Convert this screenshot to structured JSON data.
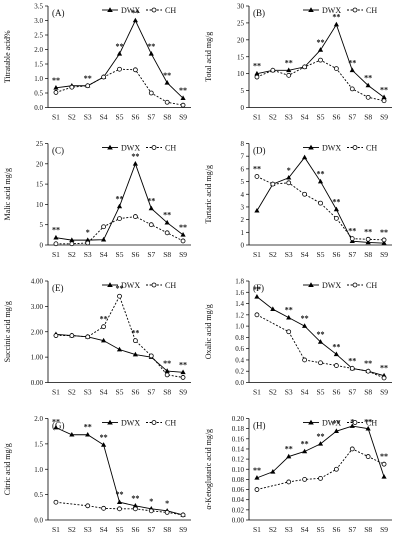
{
  "series_names": [
    "DWX",
    "CH"
  ],
  "chart_data": [
    {
      "id": "A",
      "panel_label": "(A)",
      "type": "line",
      "categories": [
        "S1",
        "S2",
        "S3",
        "S4",
        "S5",
        "S6",
        "S7",
        "S8",
        "S9"
      ],
      "ylabel": "Titratable acid%",
      "ylim": [
        0,
        3.5
      ],
      "yticks": [
        "0.0",
        "0.5",
        "1.0",
        "1.5",
        "2.0",
        "2.5",
        "3.0",
        "3.5"
      ],
      "tick_values": [
        0,
        0.5,
        1,
        1.5,
        2,
        2.5,
        3,
        3.5
      ],
      "legend": "top-right",
      "series": [
        {
          "name": "DWX",
          "values": [
            0.68,
            0.75,
            0.75,
            1.05,
            1.85,
            3.0,
            1.85,
            0.85,
            0.32
          ]
        },
        {
          "name": "CH",
          "values": [
            0.52,
            0.7,
            0.75,
            1.05,
            1.32,
            1.3,
            0.5,
            0.18,
            0.08
          ]
        }
      ],
      "significance": [
        "**",
        "",
        "**",
        "",
        "**",
        "**",
        "**",
        "**",
        "**"
      ]
    },
    {
      "id": "B",
      "panel_label": "(B)",
      "type": "line",
      "categories": [
        "S1",
        "S2",
        "S3",
        "S4",
        "S5",
        "S6",
        "S7",
        "S8",
        "S9"
      ],
      "ylabel": "Total acid mg/g",
      "ylim": [
        0,
        30
      ],
      "yticks": [
        "0",
        "5",
        "10",
        "15",
        "20",
        "25",
        "30"
      ],
      "tick_values": [
        0,
        5,
        10,
        15,
        20,
        25,
        30
      ],
      "legend": "top-right",
      "series": [
        {
          "name": "DWX",
          "values": [
            10,
            11,
            11,
            12,
            17,
            24.5,
            11,
            6.5,
            3
          ]
        },
        {
          "name": "CH",
          "values": [
            9,
            11,
            9.5,
            12,
            14,
            11.5,
            5.5,
            3,
            2
          ]
        }
      ],
      "significance": [
        "**",
        "",
        "**",
        "",
        "**",
        "**",
        "**",
        "**",
        "**"
      ]
    },
    {
      "id": "C",
      "panel_label": "(C)",
      "type": "line",
      "categories": [
        "S1",
        "S2",
        "S3",
        "S4",
        "S5",
        "S6",
        "S7",
        "S8",
        "S9"
      ],
      "ylabel": "Malic acid mg/g",
      "ylim": [
        0,
        25
      ],
      "yticks": [
        "0",
        "5",
        "10",
        "15",
        "20",
        "25"
      ],
      "tick_values": [
        0,
        5,
        10,
        15,
        20,
        25
      ],
      "legend": "top-right",
      "series": [
        {
          "name": "DWX",
          "values": [
            1.8,
            1.2,
            1.2,
            1.3,
            9.5,
            20,
            9,
            5.5,
            2.5
          ]
        },
        {
          "name": "CH",
          "values": [
            0.3,
            0.3,
            0.5,
            4.5,
            6.5,
            7,
            5,
            3,
            1
          ]
        }
      ],
      "significance": [
        "**",
        "",
        "*",
        "",
        "**",
        "**",
        "**",
        "**",
        "**"
      ]
    },
    {
      "id": "D",
      "panel_label": "(D)",
      "type": "line",
      "categories": [
        "S1",
        "S2",
        "S3",
        "S4",
        "S5",
        "S6",
        "S7",
        "S8",
        "S9"
      ],
      "ylabel": "Tartaric acid mg/g",
      "ylim": [
        0,
        8
      ],
      "yticks": [
        "0",
        "1",
        "2",
        "3",
        "4",
        "5",
        "6",
        "7",
        "8"
      ],
      "tick_values": [
        0,
        1,
        2,
        3,
        4,
        5,
        6,
        7,
        8
      ],
      "legend": "top-right",
      "series": [
        {
          "name": "DWX",
          "values": [
            2.7,
            4.8,
            5.3,
            6.9,
            5.0,
            2.8,
            0.3,
            0.2,
            0.15
          ]
        },
        {
          "name": "CH",
          "values": [
            5.4,
            4.8,
            4.9,
            4.0,
            3.3,
            2.1,
            0.5,
            0.45,
            0.4
          ]
        }
      ],
      "significance": [
        "**",
        "",
        "*",
        "",
        "**",
        "**",
        "**",
        "**",
        "**"
      ]
    },
    {
      "id": "E",
      "panel_label": "(E)",
      "type": "line",
      "categories": [
        "S1",
        "S2",
        "S3",
        "S4",
        "S5",
        "S6",
        "S7",
        "S8",
        "S9"
      ],
      "ylabel": "Succinic acid mg/g",
      "ylim": [
        0,
        4
      ],
      "yticks": [
        "0.00",
        "1.00",
        "2.00",
        "3.00",
        "4.00"
      ],
      "tick_values": [
        0,
        1,
        2,
        3,
        4
      ],
      "legend": "top-right",
      "series": [
        {
          "name": "DWX",
          "values": [
            1.9,
            1.85,
            1.8,
            1.65,
            1.3,
            1.1,
            1.0,
            0.45,
            0.4
          ]
        },
        {
          "name": "CH",
          "values": [
            1.85,
            1.85,
            1.8,
            2.2,
            3.4,
            1.65,
            1.05,
            0.3,
            0.2
          ]
        }
      ],
      "significance": [
        "",
        "",
        "",
        "**",
        "**",
        "**",
        "",
        "**",
        "**"
      ]
    },
    {
      "id": "F",
      "panel_label": "(F)",
      "type": "line",
      "categories": [
        "S1",
        "S2",
        "S3",
        "S4",
        "S5",
        "S6",
        "S7",
        "S8",
        "S9"
      ],
      "ylabel": "Oxalic acid mg/g",
      "ylim": [
        0,
        1.8
      ],
      "yticks": [
        "0.0",
        "0.2",
        "0.4",
        "0.6",
        "0.8",
        "1.0",
        "1.2",
        "1.4",
        "1.6",
        "1.8"
      ],
      "tick_values": [
        0,
        0.2,
        0.4,
        0.6,
        0.8,
        1,
        1.2,
        1.4,
        1.6,
        1.8
      ],
      "legend": "top-right",
      "series": [
        {
          "name": "DWX",
          "values": [
            1.52,
            1.3,
            1.15,
            1.0,
            0.72,
            0.5,
            0.25,
            0.2,
            0.12
          ]
        },
        {
          "name": "CH",
          "values": [
            1.2,
            null,
            0.9,
            0.4,
            0.35,
            0.3,
            0.25,
            0.2,
            0.08
          ]
        }
      ],
      "significance": [
        "**",
        "",
        "**",
        "**",
        "**",
        "**",
        "**",
        "**",
        "**"
      ]
    },
    {
      "id": "G",
      "panel_label": "(G)",
      "type": "line",
      "categories": [
        "S1",
        "S2",
        "S3",
        "S4",
        "S5",
        "S6",
        "S7",
        "S8",
        "S9"
      ],
      "ylabel": "Citric acid mg/g",
      "ylim": [
        0,
        2
      ],
      "yticks": [
        "0.0",
        "0.5",
        "1.0",
        "1.5",
        "2.0"
      ],
      "tick_values": [
        0,
        0.5,
        1,
        1.5,
        2
      ],
      "legend": "top-right",
      "series": [
        {
          "name": "DWX",
          "values": [
            1.82,
            1.68,
            1.68,
            1.48,
            0.35,
            0.28,
            0.22,
            0.18,
            0.1
          ]
        },
        {
          "name": "CH",
          "values": [
            0.35,
            null,
            0.28,
            0.23,
            0.22,
            0.22,
            0.18,
            0.15,
            0.1
          ]
        }
      ],
      "significance": [
        "**",
        "",
        "**",
        "**",
        "**",
        "**",
        "*",
        "*",
        ""
      ]
    },
    {
      "id": "H",
      "panel_label": "(H)",
      "type": "line",
      "categories": [
        "S1",
        "S2",
        "S3",
        "S4",
        "S5",
        "S6",
        "S7",
        "S8",
        "S9"
      ],
      "ylabel": "α-Ketoglutaric acid mg/g",
      "ylim": [
        0,
        0.2
      ],
      "yticks": [
        "0.00",
        "0.02",
        "0.04",
        "0.06",
        "0.08",
        "0.10",
        "0.12",
        "0.14",
        "0.16",
        "0.18",
        "0.20"
      ],
      "tick_values": [
        0,
        0.02,
        0.04,
        0.06,
        0.08,
        0.1,
        0.12,
        0.14,
        0.16,
        0.18,
        0.2
      ],
      "legend": "top-right",
      "series": [
        {
          "name": "DWX",
          "values": [
            0.083,
            0.095,
            0.125,
            0.135,
            0.15,
            0.175,
            0.185,
            0.18,
            0.085
          ]
        },
        {
          "name": "CH",
          "values": [
            0.06,
            null,
            0.075,
            0.08,
            0.082,
            0.1,
            0.14,
            0.125,
            0.11
          ]
        }
      ],
      "significance": [
        "**",
        "",
        "**",
        "**",
        "**",
        "**",
        "*",
        "**",
        "**"
      ]
    }
  ]
}
